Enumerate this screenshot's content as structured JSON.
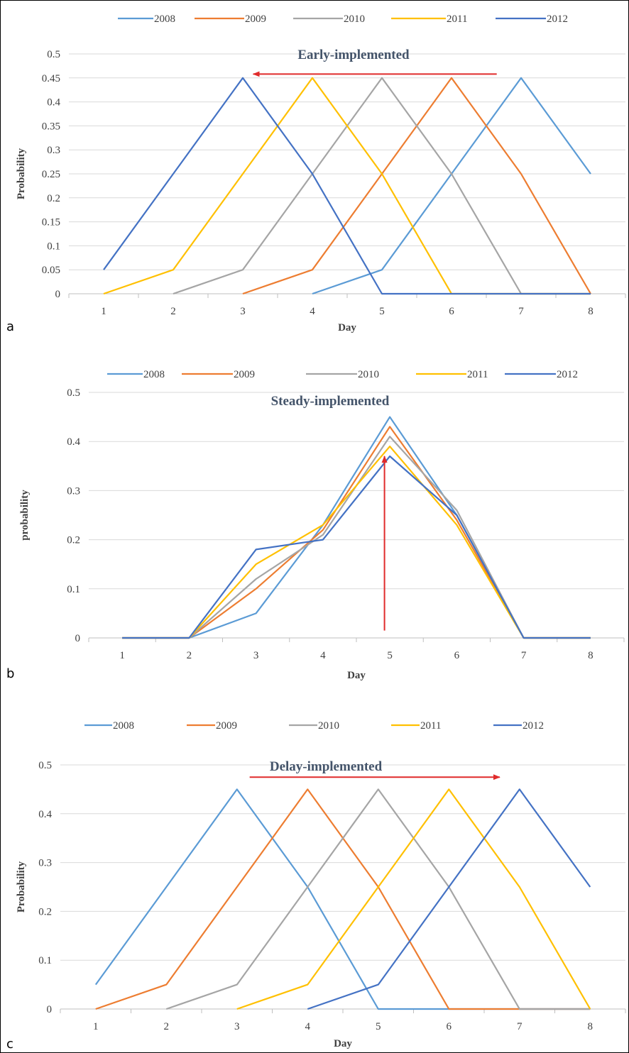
{
  "chart_data": [
    {
      "type": "line",
      "panel_label": "a",
      "title": "",
      "xlabel": "Day",
      "ylabel": "Probability",
      "x": [
        1,
        2,
        3,
        4,
        5,
        6,
        7,
        8
      ],
      "ylim": [
        0,
        0.5
      ],
      "yticks": [
        0,
        0.05,
        0.1,
        0.15,
        0.2,
        0.25,
        0.3,
        0.35,
        0.4,
        0.45,
        0.5
      ],
      "legend_position": "top",
      "annotation": "Early-implemented",
      "arrow": {
        "direction": "left",
        "from_x": 6.65,
        "to_x": 3.15,
        "y": 0.458
      },
      "series": [
        {
          "name": "2008",
          "color": "#5b9bd5",
          "values": [
            null,
            null,
            null,
            0,
            0.05,
            0.25,
            0.45,
            0.25
          ]
        },
        {
          "name": "2009",
          "color": "#ed7d31",
          "values": [
            null,
            null,
            0,
            0.05,
            0.25,
            0.45,
            0.25,
            0
          ]
        },
        {
          "name": "2010",
          "color": "#a5a5a5",
          "values": [
            null,
            0,
            0.05,
            0.25,
            0.45,
            0.25,
            0,
            0
          ]
        },
        {
          "name": "2011",
          "color": "#ffc000",
          "values": [
            0,
            0.05,
            0.25,
            0.45,
            0.25,
            0,
            0,
            0
          ]
        },
        {
          "name": "2012",
          "color": "#4472c4",
          "values": [
            0.05,
            0.25,
            0.45,
            0.25,
            0,
            0,
            0,
            0
          ]
        }
      ]
    },
    {
      "type": "line",
      "panel_label": "b",
      "title": "",
      "xlabel": "Day",
      "ylabel": "probability",
      "x": [
        1,
        2,
        3,
        4,
        5,
        6,
        7,
        8
      ],
      "ylim": [
        0,
        0.5
      ],
      "yticks": [
        0,
        0.1,
        0.2,
        0.3,
        0.4,
        0.5
      ],
      "legend_position": "top",
      "annotation": "Steady-implemented",
      "arrow": {
        "direction": "up",
        "x": 4.92,
        "from_y": 0.015,
        "to_y": 0.37
      },
      "series": [
        {
          "name": "2008",
          "color": "#5b9bd5",
          "values": [
            0,
            0,
            0.05,
            0.23,
            0.45,
            0.25,
            0,
            0
          ]
        },
        {
          "name": "2009",
          "color": "#ed7d31",
          "values": [
            0,
            0,
            0.1,
            0.22,
            0.43,
            0.24,
            0,
            0
          ]
        },
        {
          "name": "2010",
          "color": "#a5a5a5",
          "values": [
            0,
            0,
            0.12,
            0.21,
            0.41,
            0.26,
            0,
            0
          ]
        },
        {
          "name": "2011",
          "color": "#ffc000",
          "values": [
            0,
            0,
            0.15,
            0.23,
            0.39,
            0.23,
            0,
            0
          ]
        },
        {
          "name": "2012",
          "color": "#4472c4",
          "values": [
            0,
            0,
            0.18,
            0.2,
            0.37,
            0.25,
            0,
            0
          ]
        }
      ]
    },
    {
      "type": "line",
      "panel_label": "c",
      "title": "",
      "xlabel": "Day",
      "ylabel": "Probability",
      "x": [
        1,
        2,
        3,
        4,
        5,
        6,
        7,
        8
      ],
      "ylim": [
        0,
        0.5
      ],
      "yticks": [
        0,
        0.1,
        0.2,
        0.3,
        0.4,
        0.5
      ],
      "legend_position": "top",
      "annotation": "Delay-implemented",
      "arrow": {
        "direction": "right",
        "from_x": 3.18,
        "to_x": 6.72,
        "y": 0.475
      },
      "series": [
        {
          "name": "2008",
          "color": "#5b9bd5",
          "values": [
            0.05,
            0.25,
            0.45,
            0.25,
            0,
            0,
            0,
            0
          ]
        },
        {
          "name": "2009",
          "color": "#ed7d31",
          "values": [
            0,
            0.05,
            0.25,
            0.45,
            0.25,
            0,
            0,
            0
          ]
        },
        {
          "name": "2010",
          "color": "#a5a5a5",
          "values": [
            null,
            0,
            0.05,
            0.25,
            0.45,
            0.25,
            0,
            0
          ]
        },
        {
          "name": "2011",
          "color": "#ffc000",
          "values": [
            null,
            null,
            0,
            0.05,
            0.25,
            0.45,
            0.25,
            0
          ]
        },
        {
          "name": "2012",
          "color": "#4472c4",
          "values": [
            null,
            null,
            null,
            0,
            0.05,
            0.25,
            0.45,
            0.25
          ]
        }
      ]
    }
  ]
}
